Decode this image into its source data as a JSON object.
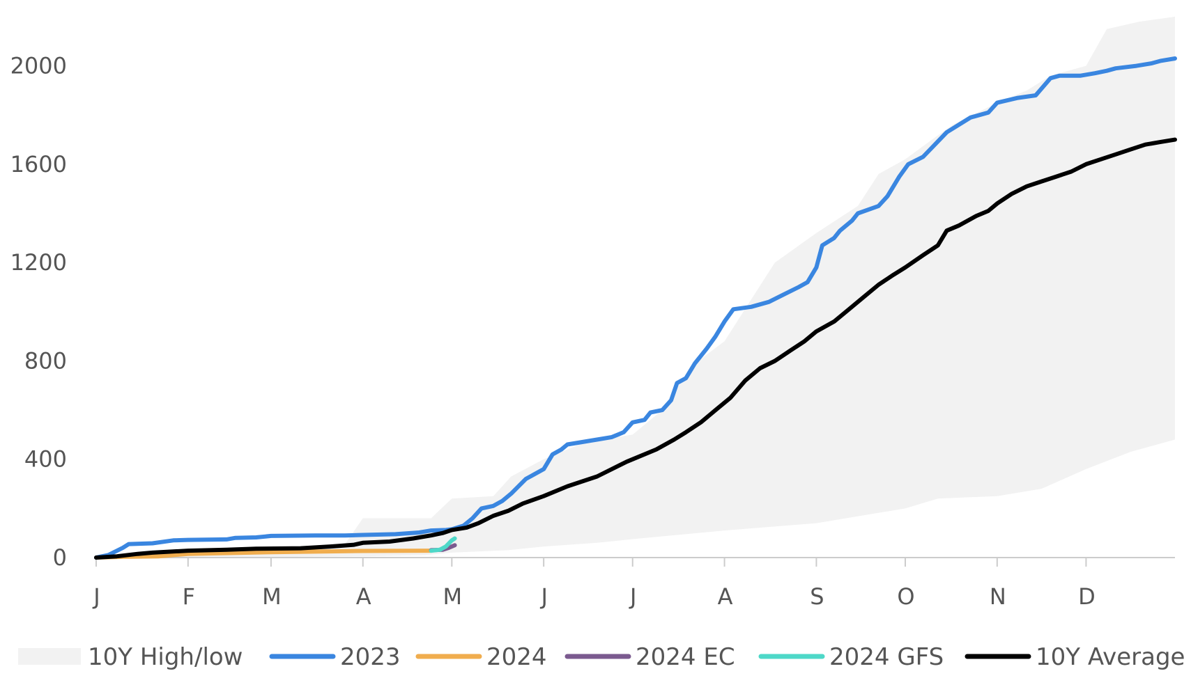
{
  "chart_data": {
    "type": "line",
    "title": "",
    "xlabel": "",
    "ylabel": "",
    "x_axis": {
      "min": 1,
      "max": 365,
      "ticks": [
        1,
        32,
        60,
        91,
        121,
        152,
        182,
        213,
        244,
        274,
        305,
        335
      ],
      "labels": [
        "J",
        "F",
        "M",
        "A",
        "M",
        "J",
        "J",
        "A",
        "S",
        "O",
        "N",
        "D"
      ]
    },
    "y_axis": {
      "min": 0,
      "max": 2200,
      "ticks": [
        0,
        400,
        800,
        1200,
        1600,
        2000
      ],
      "labels": [
        "0",
        "400",
        "800",
        "1200",
        "1600",
        "2000"
      ]
    },
    "grid": false,
    "legend_position": "bottom",
    "band": {
      "name": "10Y High/low",
      "color": "#f2f2f2",
      "high": [
        [
          1,
          0
        ],
        [
          10,
          10
        ],
        [
          32,
          20
        ],
        [
          60,
          40
        ],
        [
          85,
          55
        ],
        [
          91,
          160
        ],
        [
          114,
          160
        ],
        [
          121,
          240
        ],
        [
          135,
          250
        ],
        [
          141,
          330
        ],
        [
          152,
          400
        ],
        [
          166,
          470
        ],
        [
          182,
          500
        ],
        [
          192,
          600
        ],
        [
          202,
          780
        ],
        [
          213,
          880
        ],
        [
          222,
          1050
        ],
        [
          230,
          1200
        ],
        [
          244,
          1320
        ],
        [
          258,
          1430
        ],
        [
          265,
          1560
        ],
        [
          274,
          1620
        ],
        [
          283,
          1700
        ],
        [
          290,
          1760
        ],
        [
          305,
          1850
        ],
        [
          315,
          1900
        ],
        [
          323,
          1960
        ],
        [
          335,
          2000
        ],
        [
          342,
          2150
        ],
        [
          353,
          2180
        ],
        [
          365,
          2200
        ]
      ],
      "low": [
        [
          1,
          0
        ],
        [
          32,
          0
        ],
        [
          60,
          2
        ],
        [
          91,
          5
        ],
        [
          112,
          10
        ],
        [
          121,
          20
        ],
        [
          140,
          30
        ],
        [
          152,
          45
        ],
        [
          170,
          60
        ],
        [
          182,
          75
        ],
        [
          213,
          110
        ],
        [
          244,
          140
        ],
        [
          274,
          200
        ],
        [
          285,
          240
        ],
        [
          305,
          250
        ],
        [
          320,
          280
        ],
        [
          335,
          360
        ],
        [
          350,
          430
        ],
        [
          365,
          480
        ]
      ]
    },
    "series": [
      {
        "name": "2023",
        "color": "#3a86e0",
        "points": [
          [
            1,
            0
          ],
          [
            5,
            10
          ],
          [
            10,
            40
          ],
          [
            12,
            55
          ],
          [
            20,
            58
          ],
          [
            27,
            70
          ],
          [
            32,
            72
          ],
          [
            45,
            74
          ],
          [
            48,
            80
          ],
          [
            55,
            82
          ],
          [
            60,
            88
          ],
          [
            75,
            90
          ],
          [
            85,
            90
          ],
          [
            91,
            92
          ],
          [
            102,
            95
          ],
          [
            110,
            102
          ],
          [
            114,
            110
          ],
          [
            119,
            112
          ],
          [
            121,
            115
          ],
          [
            125,
            130
          ],
          [
            128,
            160
          ],
          [
            131,
            200
          ],
          [
            135,
            210
          ],
          [
            138,
            230
          ],
          [
            141,
            260
          ],
          [
            146,
            320
          ],
          [
            152,
            360
          ],
          [
            155,
            420
          ],
          [
            158,
            440
          ],
          [
            160,
            460
          ],
          [
            165,
            470
          ],
          [
            170,
            480
          ],
          [
            175,
            490
          ],
          [
            179,
            510
          ],
          [
            182,
            550
          ],
          [
            186,
            560
          ],
          [
            188,
            590
          ],
          [
            192,
            600
          ],
          [
            195,
            640
          ],
          [
            197,
            710
          ],
          [
            200,
            730
          ],
          [
            203,
            790
          ],
          [
            207,
            850
          ],
          [
            210,
            900
          ],
          [
            213,
            960
          ],
          [
            216,
            1010
          ],
          [
            222,
            1020
          ],
          [
            228,
            1040
          ],
          [
            233,
            1070
          ],
          [
            238,
            1100
          ],
          [
            241,
            1120
          ],
          [
            244,
            1180
          ],
          [
            246,
            1270
          ],
          [
            250,
            1300
          ],
          [
            252,
            1330
          ],
          [
            256,
            1370
          ],
          [
            258,
            1400
          ],
          [
            265,
            1430
          ],
          [
            268,
            1470
          ],
          [
            272,
            1550
          ],
          [
            275,
            1600
          ],
          [
            280,
            1630
          ],
          [
            284,
            1680
          ],
          [
            288,
            1730
          ],
          [
            292,
            1760
          ],
          [
            296,
            1790
          ],
          [
            302,
            1810
          ],
          [
            305,
            1850
          ],
          [
            312,
            1870
          ],
          [
            318,
            1880
          ],
          [
            323,
            1950
          ],
          [
            326,
            1960
          ],
          [
            333,
            1960
          ],
          [
            338,
            1970
          ],
          [
            342,
            1980
          ],
          [
            345,
            1990
          ],
          [
            352,
            2000
          ],
          [
            357,
            2010
          ],
          [
            360,
            2020
          ],
          [
            365,
            2030
          ]
        ]
      },
      {
        "name": "2024",
        "color": "#f0ad4e",
        "points": [
          [
            1,
            0
          ],
          [
            10,
            3
          ],
          [
            22,
            5
          ],
          [
            32,
            15
          ],
          [
            60,
            22
          ],
          [
            91,
            27
          ],
          [
            114,
            28
          ]
        ]
      },
      {
        "name": "2024 EC",
        "color": "#7b5a8f",
        "points": [
          [
            114,
            30
          ],
          [
            118,
            32
          ],
          [
            120,
            40
          ],
          [
            122,
            50
          ]
        ]
      },
      {
        "name": "2024 GFS",
        "color": "#4ed8c8",
        "points": [
          [
            114,
            28
          ],
          [
            117,
            32
          ],
          [
            119,
            45
          ],
          [
            121,
            70
          ],
          [
            122,
            78
          ]
        ]
      },
      {
        "name": "10Y Average",
        "color": "#000000",
        "points": [
          [
            1,
            0
          ],
          [
            8,
            5
          ],
          [
            15,
            15
          ],
          [
            20,
            20
          ],
          [
            32,
            28
          ],
          [
            45,
            32
          ],
          [
            55,
            36
          ],
          [
            70,
            38
          ],
          [
            80,
            45
          ],
          [
            88,
            52
          ],
          [
            91,
            60
          ],
          [
            100,
            65
          ],
          [
            108,
            78
          ],
          [
            114,
            90
          ],
          [
            118,
            100
          ],
          [
            121,
            112
          ],
          [
            126,
            122
          ],
          [
            130,
            140
          ],
          [
            135,
            170
          ],
          [
            140,
            190
          ],
          [
            145,
            220
          ],
          [
            152,
            250
          ],
          [
            160,
            290
          ],
          [
            170,
            330
          ],
          [
            180,
            390
          ],
          [
            190,
            440
          ],
          [
            196,
            480
          ],
          [
            200,
            510
          ],
          [
            205,
            550
          ],
          [
            210,
            600
          ],
          [
            215,
            650
          ],
          [
            220,
            720
          ],
          [
            225,
            770
          ],
          [
            230,
            800
          ],
          [
            235,
            840
          ],
          [
            240,
            880
          ],
          [
            244,
            920
          ],
          [
            250,
            960
          ],
          [
            255,
            1010
          ],
          [
            260,
            1060
          ],
          [
            265,
            1110
          ],
          [
            270,
            1150
          ],
          [
            274,
            1180
          ],
          [
            280,
            1230
          ],
          [
            285,
            1270
          ],
          [
            288,
            1330
          ],
          [
            292,
            1350
          ],
          [
            298,
            1390
          ],
          [
            302,
            1410
          ],
          [
            305,
            1440
          ],
          [
            310,
            1480
          ],
          [
            315,
            1510
          ],
          [
            320,
            1530
          ],
          [
            325,
            1550
          ],
          [
            330,
            1570
          ],
          [
            335,
            1600
          ],
          [
            340,
            1620
          ],
          [
            345,
            1640
          ],
          [
            350,
            1660
          ],
          [
            355,
            1680
          ],
          [
            360,
            1690
          ],
          [
            365,
            1700
          ]
        ]
      }
    ]
  }
}
